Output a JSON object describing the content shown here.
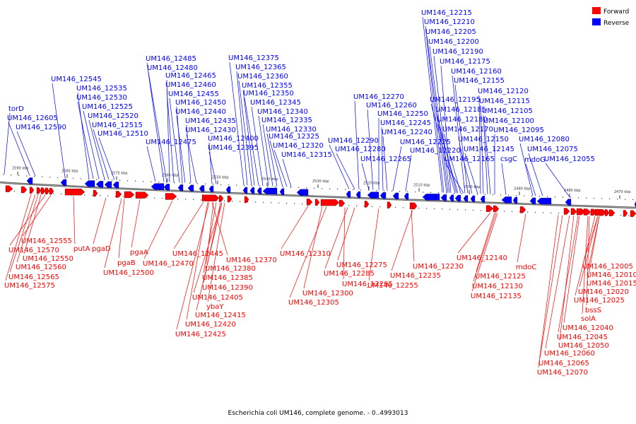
{
  "caption": "Escherichia coli UM146, complete genome. - 0..4993013",
  "legend": [
    {
      "label": "Forward",
      "color": "#ff0000"
    },
    {
      "label": "Reverse",
      "color": "#0000ff"
    }
  ],
  "colors": {
    "forward": "#ff0000",
    "reverse": "#0000ff",
    "backbone": "#888888"
  },
  "scale_ticks": [
    "2590 kbp",
    "2580 kbp",
    "2570 kbp",
    "2560 kbp",
    "2550 kbp",
    "2540 kbp",
    "2530 kbp",
    "2520 kbp",
    "2510 kbp",
    "2500 kbp",
    "2490 kbp",
    "2480 kbp",
    "2470 kbp"
  ],
  "reverse_genes": [
    "torD",
    "UM146_12605",
    "UM146_12590",
    "UM146_12545",
    "UM146_12535",
    "UM146_12530",
    "UM146_12525",
    "UM146_12520",
    "UM146_12515",
    "UM146_12510",
    "UM146_12485",
    "UM146_12480",
    "UM146_12475",
    "UM146_12465",
    "UM146_12460",
    "UM146_12455",
    "UM146_12450",
    "UM146_12440",
    "UM146_12435",
    "UM146_12430",
    "UM146_12400",
    "UM146_12395",
    "UM146_12375",
    "UM146_12365",
    "UM146_12360",
    "UM146_12355",
    "UM146_12350",
    "UM146_12345",
    "UM146_12340",
    "UM146_12335",
    "UM146_12330",
    "UM146_12325",
    "UM146_12320",
    "UM146_12315",
    "UM146_12290",
    "UM146_12280",
    "UM146_12270",
    "UM146_12265",
    "UM146_12260",
    "UM146_12250",
    "UM146_12245",
    "UM146_12240",
    "UM146_12225",
    "UM146_12220",
    "UM146_12215",
    "UM146_12210",
    "UM146_12205",
    "UM146_12200",
    "UM146_12190",
    "UM146_12175",
    "UM146_12195",
    "UM146_12185",
    "UM146_12180",
    "UM146_12170",
    "UM146_12165",
    "UM146_12160",
    "UM146_12155",
    "UM146_12150",
    "UM146_12145",
    "UM146_12120",
    "UM146_12115",
    "UM146_12105",
    "UM146_12100",
    "UM146_12095",
    "csgC",
    "UM146_12080",
    "mdoG",
    "UM146_12075",
    "UM146_12055"
  ],
  "forward_genes": [
    "UM146_12555",
    "UM146_12570",
    "UM146_12550",
    "UM146_12560",
    "UM146_12565",
    "UM146_12575",
    "putA",
    "pgaD",
    "pgaB",
    "pgaA",
    "UM146_12500",
    "UM146_12470",
    "UM146_12445",
    "UM146_12370",
    "UM146_12380",
    "UM146_12385",
    "UM146_12390",
    "UM146_12405",
    "ybaY",
    "UM146_12415",
    "UM146_12420",
    "UM146_12425",
    "UM146_12310",
    "UM146_12300",
    "UM146_12305",
    "UM146_12275",
    "UM146_12285",
    "UM146_12295",
    "UM146_12255",
    "UM146_12230",
    "UM146_12235",
    "UM146_12140",
    "UM146_12125",
    "UM146_12130",
    "UM146_12135",
    "mdoC",
    "UM146_12005",
    "UM146_12010",
    "UM146_12015",
    "UM146_12020",
    "UM146_12025",
    "bssS",
    "solA",
    "UM146_12040",
    "UM146_12045",
    "UM146_12050",
    "UM146_12060",
    "UM146_12065",
    "UM146_12070"
  ]
}
